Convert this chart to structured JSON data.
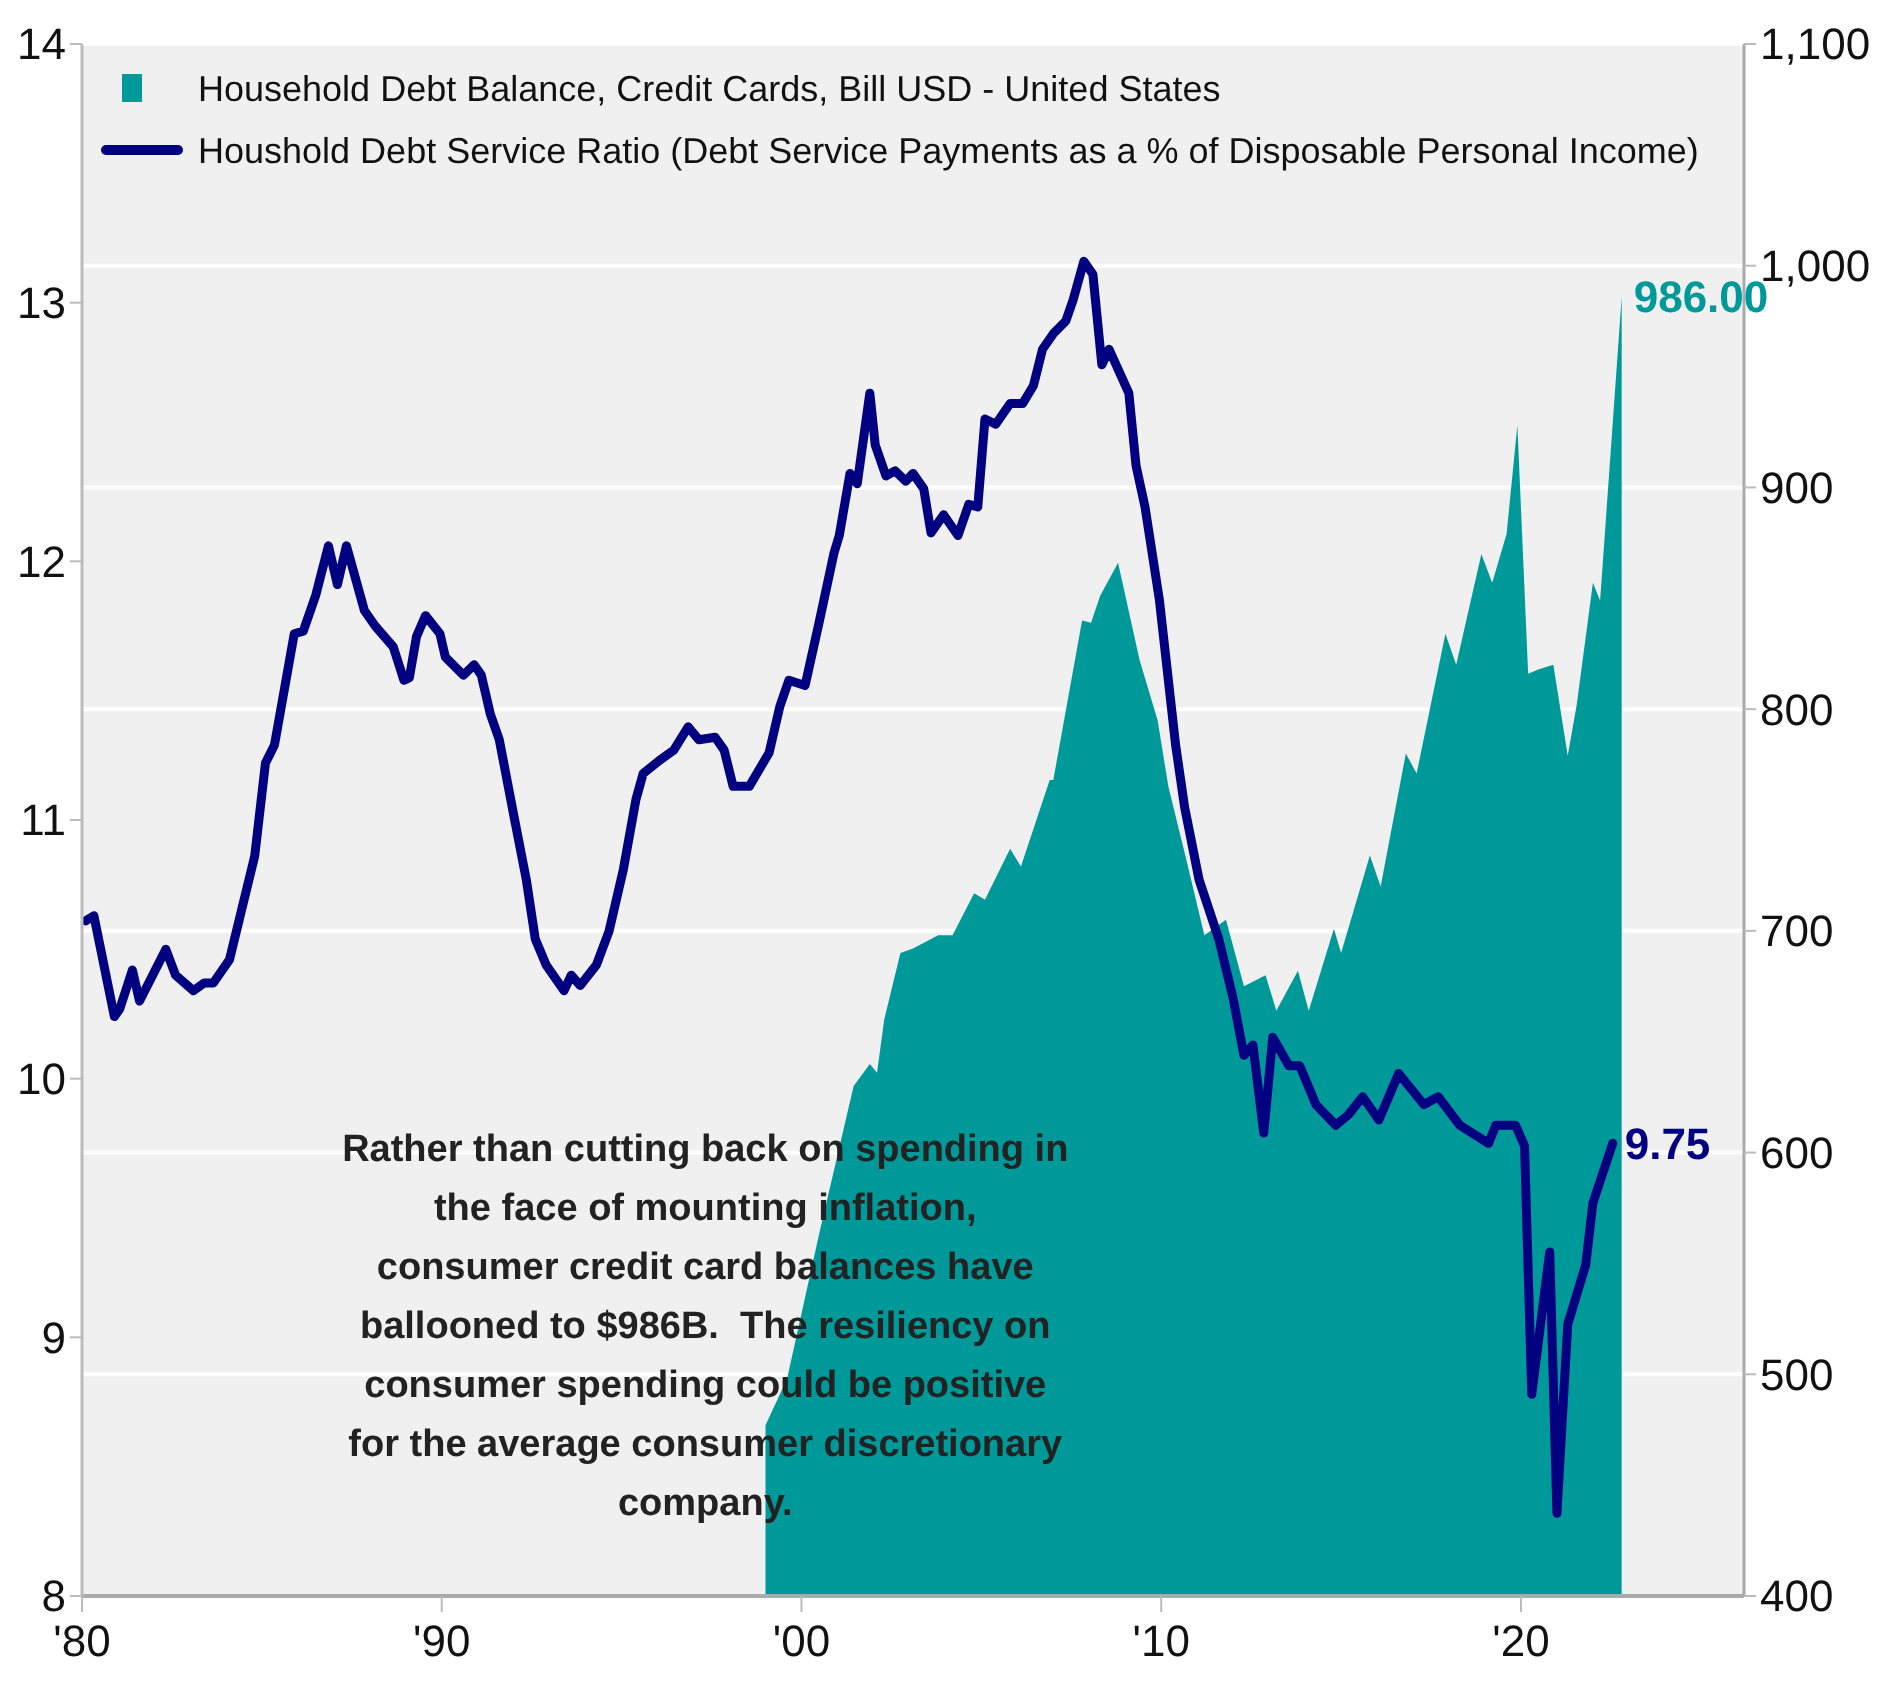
{
  "chart_data": {
    "type": "line",
    "xlim": [
      1980,
      2026.2
    ],
    "xticks": [
      {
        "value": 1980,
        "label": "'80"
      },
      {
        "value": 1990,
        "label": "'90"
      },
      {
        "value": 2000,
        "label": "'00"
      },
      {
        "value": 2010,
        "label": "'10"
      },
      {
        "value": 2020,
        "label": "'20"
      }
    ],
    "ylim": [
      8,
      14
    ],
    "yticks": [
      8,
      9,
      10,
      11,
      12,
      13,
      14
    ],
    "y2lim": [
      400,
      1100
    ],
    "y2ticks": [
      400,
      500,
      600,
      700,
      800,
      900,
      {
        "value": 1000,
        "label": "1,000"
      },
      {
        "value": 1100,
        "label": "1,100"
      }
    ],
    "grid": "y",
    "legend": "top left",
    "annotations": [
      "Rather than cutting back on spending in\nthe face of mounting inflation,\nconsumer credit card balances have\nballooned to $986B.  The resiliency on\nconsumer spending could be positive\nfor the average consumer discretionary\ncompany."
    ],
    "series": [
      {
        "name": "Household Debt Balance, Credit Cards, Bill USD - United States",
        "type": "area",
        "axis": "y2",
        "color": "#009999",
        "x": [
          1999.0,
          1999.6,
          2000.5,
          2001.45,
          2001.9,
          2002.1,
          2002.3,
          2002.75,
          2003.1,
          2003.8,
          2004.2,
          2004.8,
          2005.1,
          2005.8,
          2006.1,
          2006.9,
          2007.0,
          2007.8,
          2008.05,
          2008.3,
          2008.8,
          2009.4,
          2009.9,
          2010.2,
          2010.7,
          2011.2,
          2011.8,
          2012.3,
          2012.9,
          2013.2,
          2013.8,
          2014.1,
          2014.8,
          2015.0,
          2015.8,
          2016.1,
          2016.8,
          2017.1,
          2017.9,
          2018.2,
          2018.9,
          2019.2,
          2019.6,
          2019.9,
          2020.2,
          2020.5,
          2020.9,
          2021.3,
          2021.55,
          2022.0,
          2022.2,
          2022.8
        ],
        "values": [
          477,
          498,
          564,
          630,
          640,
          636,
          660,
          690,
          692,
          698,
          698,
          717,
          714,
          737,
          729,
          768,
          768,
          840,
          839,
          851,
          866,
          822,
          795,
          765,
          732,
          698,
          705,
          675,
          680,
          664,
          682,
          664,
          701,
          690,
          734,
          720,
          780,
          771,
          834,
          820,
          870,
          857,
          879,
          928,
          816,
          818,
          820,
          779,
          802,
          857,
          849,
          986
        ],
        "value_labels": [
          null,
          null,
          null,
          null,
          null,
          null,
          null,
          null,
          null,
          null,
          null,
          null,
          null,
          null,
          null,
          null,
          null,
          null,
          null,
          null,
          null,
          null,
          null,
          null,
          null,
          null,
          null,
          null,
          null,
          null,
          null,
          null,
          null,
          null,
          null,
          null,
          null,
          null,
          null,
          null,
          null,
          null,
          null,
          null,
          null,
          null,
          null,
          null,
          null,
          null,
          null,
          "986.00"
        ]
      },
      {
        "name": "Houshold Debt Service Ratio (Debt Service Payments as a % of Disposable Personal Income)",
        "type": "line",
        "color": "#000080",
        "x": [
          1980.1,
          1980.33,
          1980.9,
          1981.05,
          1981.4,
          1981.6,
          1982.33,
          1982.6,
          1983.1,
          1983.4,
          1983.65,
          1984.1,
          1984.8,
          1985.1,
          1985.35,
          1985.9,
          1986.15,
          1986.5,
          1986.85,
          1987.1,
          1987.35,
          1987.85,
          1988.15,
          1988.65,
          1988.95,
          1989.1,
          1989.3,
          1989.55,
          1989.95,
          1990.1,
          1990.6,
          1990.9,
          1991.1,
          1991.35,
          1991.6,
          1992.0,
          1992.35,
          1992.6,
          1992.9,
          1993.4,
          1993.6,
          1993.85,
          1994.3,
          1994.65,
          1995.05,
          1995.4,
          1995.6,
          1996.05,
          1996.45,
          1996.85,
          1997.15,
          1997.6,
          1997.85,
          1998.1,
          1998.55,
          1999.1,
          1999.4,
          1999.65,
          2000.1,
          2000.5,
          2000.9,
          2001.05,
          2001.35,
          2001.55,
          2001.9,
          2002.05,
          2002.35,
          2002.6,
          2002.9,
          2003.1,
          2003.4,
          2003.6,
          2003.95,
          2004.35,
          2004.65,
          2004.9,
          2005.1,
          2005.4,
          2005.8,
          2006.15,
          2006.45,
          2006.7,
          2007.0,
          2007.35,
          2007.55,
          2007.85,
          2008.1,
          2008.35,
          2008.55,
          2009.1,
          2009.3,
          2009.55,
          2009.95,
          2010.4,
          2010.65,
          2011.05,
          2011.6,
          2012.0,
          2012.3,
          2012.55,
          2012.85,
          2013.1,
          2013.55,
          2013.85,
          2014.3,
          2014.85,
          2015.2,
          2015.6,
          2016.05,
          2016.6,
          2017.3,
          2017.7,
          2018.3,
          2019.1,
          2019.3,
          2019.85,
          2020.1,
          2020.3,
          2020.8,
          2021.0,
          2021.3,
          2021.8,
          2022.0,
          2022.55
        ],
        "values": [
          10.61,
          10.63,
          10.24,
          10.27,
          10.42,
          10.3,
          10.5,
          10.4,
          10.34,
          10.37,
          10.37,
          10.46,
          10.86,
          11.22,
          11.29,
          11.72,
          11.73,
          11.87,
          12.06,
          11.91,
          12.06,
          11.81,
          11.75,
          11.67,
          11.54,
          11.55,
          11.71,
          11.79,
          11.72,
          11.63,
          11.56,
          11.6,
          11.56,
          11.41,
          11.31,
          11.02,
          10.77,
          10.54,
          10.44,
          10.34,
          10.4,
          10.36,
          10.44,
          10.57,
          10.81,
          11.08,
          11.18,
          11.23,
          11.27,
          11.36,
          11.31,
          11.32,
          11.27,
          11.13,
          11.13,
          11.26,
          11.44,
          11.54,
          11.52,
          11.77,
          12.03,
          12.1,
          12.34,
          12.3,
          12.65,
          12.45,
          12.33,
          12.35,
          12.31,
          12.34,
          12.28,
          12.11,
          12.18,
          12.1,
          12.22,
          12.21,
          12.55,
          12.53,
          12.61,
          12.61,
          12.68,
          12.82,
          12.88,
          12.93,
          13.01,
          13.16,
          13.11,
          12.76,
          12.82,
          12.65,
          12.37,
          12.21,
          11.85,
          11.29,
          11.05,
          10.77,
          10.54,
          10.31,
          10.09,
          10.13,
          9.79,
          10.16,
          10.05,
          10.05,
          9.9,
          9.82,
          9.86,
          9.93,
          9.84,
          10.02,
          9.9,
          9.93,
          9.82,
          9.75,
          9.82,
          9.82,
          9.74,
          8.78,
          9.33,
          8.32,
          9.05,
          9.28,
          9.52,
          9.75
        ],
        "value_labels": [
          null,
          null,
          null,
          null,
          null,
          null,
          null,
          null,
          null,
          null,
          null,
          null,
          null,
          null,
          null,
          null,
          null,
          null,
          null,
          null,
          null,
          null,
          null,
          null,
          null,
          null,
          null,
          null,
          null,
          null,
          null,
          null,
          null,
          null,
          null,
          null,
          null,
          null,
          null,
          null,
          null,
          null,
          null,
          null,
          null,
          null,
          null,
          null,
          null,
          null,
          null,
          null,
          null,
          null,
          null,
          null,
          null,
          null,
          null,
          null,
          null,
          null,
          null,
          null,
          null,
          null,
          null,
          null,
          null,
          null,
          null,
          null,
          null,
          null,
          null,
          null,
          null,
          null,
          null,
          null,
          null,
          null,
          null,
          null,
          null,
          null,
          null,
          null,
          null,
          null,
          null,
          null,
          null,
          null,
          null,
          null,
          null,
          null,
          null,
          null,
          null,
          null,
          null,
          null,
          null,
          null,
          null,
          null,
          null,
          null,
          null,
          null,
          null,
          null,
          null,
          null,
          null,
          null,
          null,
          null,
          null,
          null,
          null,
          "9.75"
        ]
      }
    ]
  }
}
